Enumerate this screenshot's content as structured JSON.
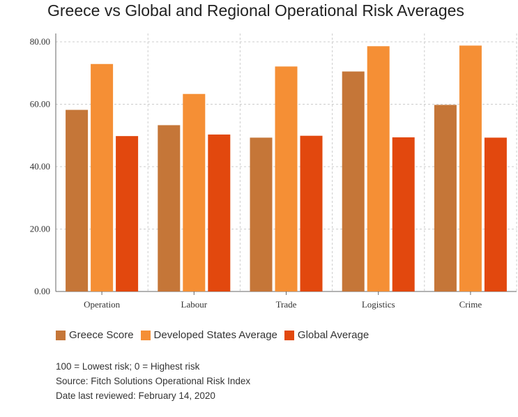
{
  "title": "Greece vs Global and Regional Operational Risk Averages",
  "chart_data": {
    "type": "bar",
    "categories": [
      "Operation",
      "Labour",
      "Trade",
      "Logistics",
      "Crime"
    ],
    "series": [
      {
        "name": "Greece Score",
        "color": "#c57638",
        "values": [
          58.2,
          53.3,
          49.3,
          70.5,
          59.8
        ]
      },
      {
        "name": "Developed States Average",
        "color": "#f58f35",
        "values": [
          72.9,
          63.3,
          72.1,
          78.6,
          78.8
        ]
      },
      {
        "name": "Global Average",
        "color": "#e2480e",
        "values": [
          49.8,
          50.3,
          49.9,
          49.4,
          49.3
        ]
      }
    ],
    "ylim": [
      0,
      80
    ],
    "yticks": [
      "0.00",
      "20.00",
      "40.00",
      "60.00",
      "80.00"
    ],
    "grid": true
  },
  "notes": [
    "100 = Lowest risk; 0 = Highest risk",
    "Source: Fitch Solutions Operational Risk Index",
    "Date last reviewed: February 14, 2020"
  ]
}
